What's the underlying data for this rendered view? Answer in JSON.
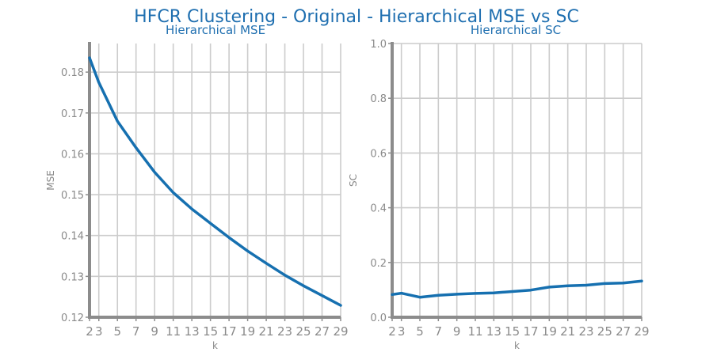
{
  "figure": {
    "title": "HFCR Clustering - Original - Hierarchical MSE vs SC"
  },
  "colors": {
    "line": "#1670b0",
    "title": "#1f6fb0",
    "grid": "#cccccc",
    "spine": "#8c8c8c"
  },
  "chart_data": [
    {
      "type": "line",
      "title": "Hierarchical MSE",
      "xlabel": "k",
      "ylabel": "MSE",
      "xticks": [
        2,
        3,
        5,
        7,
        9,
        11,
        13,
        15,
        17,
        19,
        21,
        23,
        25,
        27,
        29
      ],
      "yticks": [
        0.12,
        0.13,
        0.14,
        0.15,
        0.16,
        0.17,
        0.18
      ],
      "xlim": [
        2,
        29
      ],
      "ylim": [
        0.12,
        0.187
      ],
      "grid": true,
      "series": [
        {
          "x": [
            2,
            3,
            5,
            7,
            9,
            11,
            13,
            15,
            17,
            19,
            21,
            23,
            25,
            27,
            29
          ],
          "y": [
            0.1835,
            0.1775,
            0.168,
            0.1615,
            0.1555,
            0.1505,
            0.1465,
            0.143,
            0.1395,
            0.1362,
            0.1332,
            0.1303,
            0.1277,
            0.1253,
            0.1229
          ]
        }
      ]
    },
    {
      "type": "line",
      "title": "Hierarchical SC",
      "xlabel": "k",
      "ylabel": "SC",
      "xticks": [
        2,
        3,
        5,
        7,
        9,
        11,
        13,
        15,
        17,
        19,
        21,
        23,
        25,
        27,
        29
      ],
      "yticks": [
        0.0,
        0.2,
        0.4,
        0.6,
        0.8,
        1.0
      ],
      "xlim": [
        2,
        29
      ],
      "ylim": [
        0.0,
        1.0
      ],
      "grid": true,
      "series": [
        {
          "x": [
            2,
            3,
            5,
            7,
            9,
            11,
            13,
            15,
            17,
            19,
            21,
            23,
            25,
            27,
            29
          ],
          "y": [
            0.083,
            0.088,
            0.073,
            0.08,
            0.084,
            0.087,
            0.089,
            0.094,
            0.099,
            0.11,
            0.115,
            0.117,
            0.123,
            0.125,
            0.132
          ]
        }
      ]
    }
  ]
}
